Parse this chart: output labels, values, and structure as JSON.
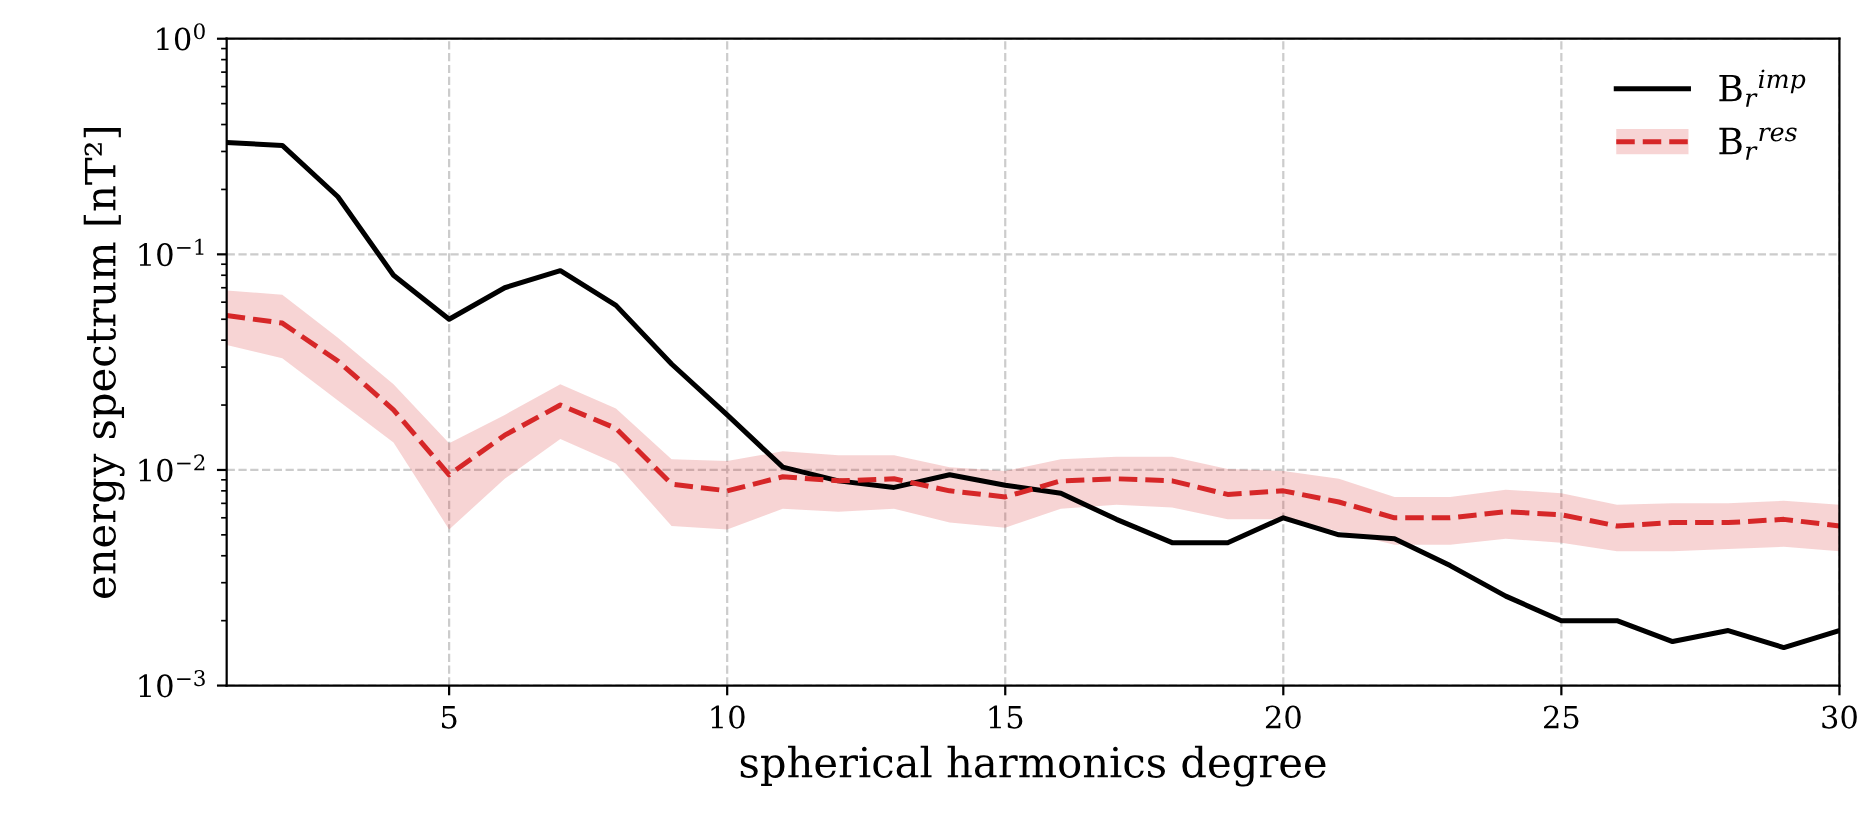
{
  "chart_data": {
    "type": "line",
    "xlabel": "spherical harmonics degree",
    "ylabel": "energy spectrum [nT²]",
    "x": [
      1,
      2,
      3,
      4,
      5,
      6,
      7,
      8,
      9,
      10,
      11,
      12,
      13,
      14,
      15,
      16,
      17,
      18,
      19,
      20,
      21,
      22,
      23,
      24,
      25,
      26,
      27,
      28,
      29,
      30
    ],
    "xlim": [
      1,
      30
    ],
    "xticks": [
      5,
      10,
      15,
      20,
      25,
      30
    ],
    "log": "y",
    "ylim": [
      0.001,
      1
    ],
    "yticks": [
      {
        "value": 0.001,
        "label": "10$^{−3}$"
      },
      {
        "value": 0.01,
        "label": "10$^{−2}$"
      },
      {
        "value": 0.1,
        "label": "10$^{−1}$"
      },
      {
        "value": 1,
        "label": "10$^{0}$"
      }
    ],
    "grid": true,
    "legend": "top right",
    "series": [
      {
        "name": "B$_{r}$$^{imp}$",
        "color": "#000000",
        "line_style": "solid",
        "values": [
          0.33,
          0.32,
          0.185,
          0.08,
          0.05,
          0.07,
          0.084,
          0.058,
          0.031,
          0.018,
          0.0103,
          0.0089,
          0.0083,
          0.0095,
          0.0085,
          0.0078,
          0.0059,
          0.0046,
          0.0046,
          0.006,
          0.005,
          0.0048,
          0.0036,
          0.0026,
          0.002,
          0.002,
          0.0016,
          0.0018,
          0.0015,
          0.0018
        ]
      },
      {
        "name": "B$_{r}$$^{res}$",
        "color": "#d62728",
        "line_style": "dashed",
        "values": [
          0.052,
          0.048,
          0.032,
          0.019,
          0.0095,
          0.0145,
          0.02,
          0.0156,
          0.0086,
          0.008,
          0.0093,
          0.0089,
          0.0091,
          0.008,
          0.0075,
          0.0089,
          0.0091,
          0.0089,
          0.0077,
          0.008,
          0.0071,
          0.006,
          0.006,
          0.0064,
          0.0062,
          0.0055,
          0.0057,
          0.0057,
          0.0059,
          0.0055
        ],
        "upper": [
          0.068,
          0.065,
          0.041,
          0.025,
          0.0133,
          0.018,
          0.025,
          0.0193,
          0.0112,
          0.011,
          0.0122,
          0.0117,
          0.0117,
          0.0103,
          0.0099,
          0.0112,
          0.0115,
          0.0115,
          0.0101,
          0.0099,
          0.0091,
          0.0075,
          0.0075,
          0.0081,
          0.0078,
          0.0069,
          0.007,
          0.007,
          0.0072,
          0.0069
        ],
        "lower": [
          0.038,
          0.033,
          0.021,
          0.0134,
          0.0053,
          0.0091,
          0.0139,
          0.0107,
          0.0055,
          0.0053,
          0.0066,
          0.0064,
          0.0066,
          0.0057,
          0.0054,
          0.0066,
          0.0069,
          0.0067,
          0.0059,
          0.0059,
          0.0052,
          0.0045,
          0.0045,
          0.0048,
          0.0046,
          0.0042,
          0.0042,
          0.0043,
          0.0044,
          0.0042
        ]
      }
    ]
  }
}
